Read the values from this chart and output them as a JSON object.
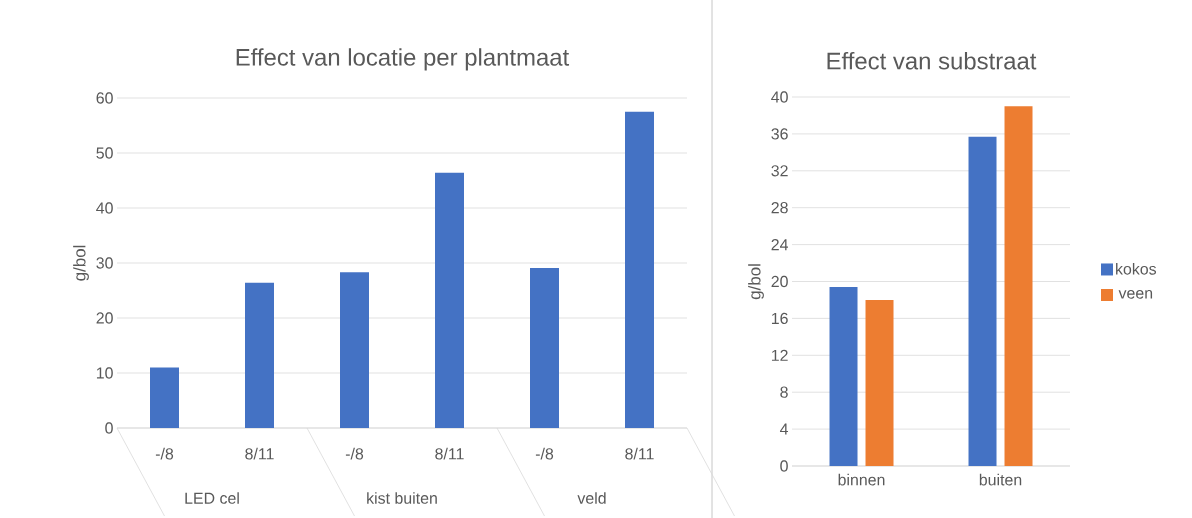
{
  "chart_data": [
    {
      "type": "bar",
      "title": "Effect van locatie per plantmaat",
      "ylabel": "g/bol",
      "categories": [
        "-/8",
        "8/11",
        "-/8",
        "8/11",
        "-/8",
        "8/11"
      ],
      "annotations": [
        "LED cel",
        "kist buiten",
        "veld"
      ],
      "values": [
        11.0,
        26.4,
        28.3,
        46.4,
        29.1,
        57.5
      ],
      "color": "#4472c4",
      "ylim": [
        0,
        60
      ],
      "yticks": [
        0,
        10,
        20,
        30,
        40,
        50,
        60
      ],
      "grid": "y"
    },
    {
      "type": "bar",
      "title": "Effect van substraat",
      "ylabel": "g/bol",
      "categories": [
        "binnen",
        "buiten"
      ],
      "series": [
        {
          "name": "kokos",
          "color": "#4472c4",
          "values": [
            19.4,
            35.7
          ]
        },
        {
          "name": "veen",
          "color": "#ed7d31",
          "values": [
            18.0,
            39.0
          ]
        }
      ],
      "ylim": [
        0,
        40
      ],
      "yticks": [
        0,
        4,
        8,
        12,
        16,
        20,
        24,
        28,
        32,
        36,
        40
      ],
      "grid": "y",
      "legend": "right"
    }
  ]
}
